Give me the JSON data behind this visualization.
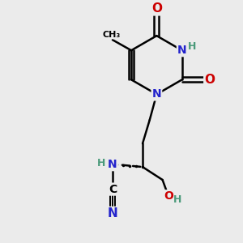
{
  "bg_color": "#ebebeb",
  "atom_colors": {
    "C": "#000000",
    "N": "#2222cc",
    "O": "#cc0000",
    "H": "#4a9a7a"
  },
  "bond_color": "#000000",
  "bond_width": 1.8,
  "figsize": [
    3.0,
    3.0
  ],
  "dpi": 100
}
